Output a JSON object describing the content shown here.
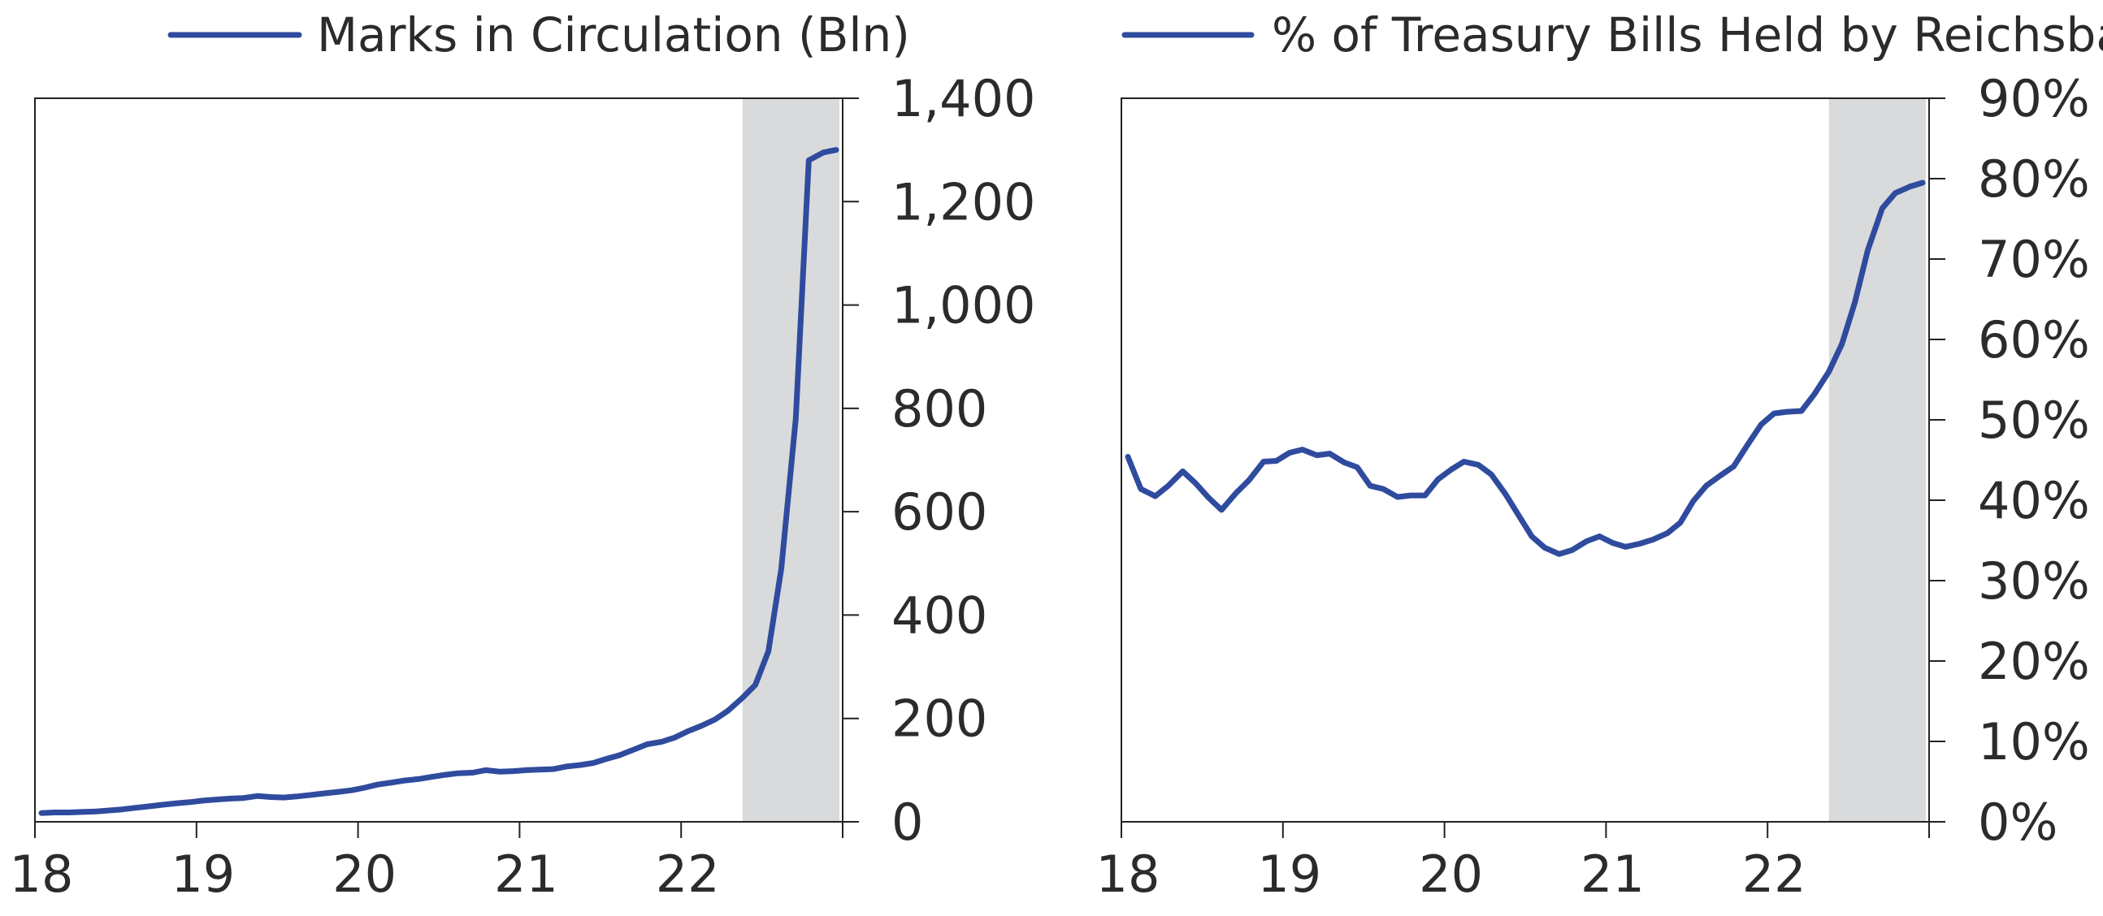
{
  "colors": {
    "series": "#2f4b9e",
    "shade": "#d9dadc",
    "axis": "#222222",
    "text": "#2b2b2b"
  },
  "chart_data": [
    {
      "type": "line",
      "title": "",
      "xlabel": "",
      "ylabel": "",
      "legend": "top",
      "grid": false,
      "shaded_region": {
        "from": 1922.38,
        "to": 1922.98
      },
      "xlim": [
        1918.0,
        1923.0
      ],
      "ylim": [
        0,
        1400
      ],
      "y_axis_side": "right",
      "x_ticks": [
        {
          "value": 1918,
          "label": "18"
        },
        {
          "value": 1919,
          "label": "19"
        },
        {
          "value": 1920,
          "label": "20"
        },
        {
          "value": 1921,
          "label": "21"
        },
        {
          "value": 1922,
          "label": "22"
        }
      ],
      "y_ticks": [
        {
          "value": 0,
          "label": "0"
        },
        {
          "value": 200,
          "label": "200"
        },
        {
          "value": 400,
          "label": "400"
        },
        {
          "value": 600,
          "label": "600"
        },
        {
          "value": 800,
          "label": "800"
        },
        {
          "value": 1000,
          "label": "1,000"
        },
        {
          "value": 1200,
          "label": "1,200"
        },
        {
          "value": 1400,
          "label": "1,400"
        }
      ],
      "series": [
        {
          "name": "Marks in Circulation (Bln)",
          "x": [
            1918.04,
            1918.12,
            1918.21,
            1918.29,
            1918.38,
            1918.46,
            1918.54,
            1918.62,
            1918.71,
            1918.79,
            1918.88,
            1918.96,
            1919.04,
            1919.12,
            1919.21,
            1919.29,
            1919.38,
            1919.46,
            1919.54,
            1919.62,
            1919.71,
            1919.79,
            1919.88,
            1919.96,
            1920.04,
            1920.12,
            1920.21,
            1920.29,
            1920.38,
            1920.46,
            1920.54,
            1920.62,
            1920.71,
            1920.79,
            1920.88,
            1920.96,
            1921.04,
            1921.12,
            1921.21,
            1921.29,
            1921.38,
            1921.46,
            1921.54,
            1921.62,
            1921.71,
            1921.79,
            1921.88,
            1921.96,
            1922.04,
            1922.12,
            1922.21,
            1922.29,
            1922.38,
            1922.46,
            1922.54,
            1922.62,
            1922.71,
            1922.79,
            1922.88,
            1922.96
          ],
          "values": [
            17,
            18,
            18,
            19,
            20,
            22,
            24,
            27,
            30,
            33,
            36,
            38,
            41,
            43,
            45,
            46,
            50,
            48,
            47,
            49,
            52,
            55,
            58,
            61,
            66,
            72,
            76,
            80,
            83,
            87,
            91,
            94,
            95,
            100,
            97,
            98,
            100,
            101,
            102,
            107,
            110,
            114,
            122,
            129,
            140,
            150,
            155,
            163,
            175,
            185,
            198,
            215,
            240,
            265,
            330,
            490,
            780,
            1280,
            1295,
            1300
          ]
        }
      ]
    },
    {
      "type": "line",
      "title": "",
      "xlabel": "",
      "ylabel": "",
      "legend": "top",
      "grid": false,
      "shaded_region": {
        "from": 1922.38,
        "to": 1922.98
      },
      "xlim": [
        1918.0,
        1923.0
      ],
      "ylim": [
        0,
        90
      ],
      "y_axis_side": "right",
      "x_ticks": [
        {
          "value": 1918,
          "label": "18"
        },
        {
          "value": 1919,
          "label": "19"
        },
        {
          "value": 1920,
          "label": "20"
        },
        {
          "value": 1921,
          "label": "21"
        },
        {
          "value": 1922,
          "label": "22"
        }
      ],
      "y_ticks": [
        {
          "value": 0,
          "label": "0%"
        },
        {
          "value": 10,
          "label": "10%"
        },
        {
          "value": 20,
          "label": "20%"
        },
        {
          "value": 30,
          "label": "30%"
        },
        {
          "value": 40,
          "label": "40%"
        },
        {
          "value": 50,
          "label": "50%"
        },
        {
          "value": 60,
          "label": "60%"
        },
        {
          "value": 70,
          "label": "70%"
        },
        {
          "value": 80,
          "label": "80%"
        },
        {
          "value": 90,
          "label": "90%"
        }
      ],
      "series": [
        {
          "name": "% of Treasury Bills Held by Reichsbank",
          "x": [
            1918.04,
            1918.12,
            1918.21,
            1918.29,
            1918.38,
            1918.46,
            1918.54,
            1918.62,
            1918.71,
            1918.79,
            1918.88,
            1918.96,
            1919.04,
            1919.12,
            1919.21,
            1919.29,
            1919.38,
            1919.46,
            1919.54,
            1919.62,
            1919.71,
            1919.79,
            1919.88,
            1919.96,
            1920.04,
            1920.12,
            1920.21,
            1920.29,
            1920.38,
            1920.46,
            1920.54,
            1920.62,
            1920.71,
            1920.79,
            1920.88,
            1920.96,
            1921.04,
            1921.12,
            1921.21,
            1921.29,
            1921.38,
            1921.46,
            1921.54,
            1921.62,
            1921.71,
            1921.79,
            1921.88,
            1921.96,
            1922.04,
            1922.12,
            1922.21,
            1922.29,
            1922.38,
            1922.46,
            1922.54,
            1922.62,
            1922.71,
            1922.79,
            1922.88,
            1922.96
          ],
          "values": [
            45.4,
            41.4,
            40.5,
            41.8,
            43.6,
            42.1,
            40.3,
            38.8,
            40.9,
            42.5,
            44.8,
            44.9,
            45.9,
            46.3,
            45.6,
            45.8,
            44.7,
            44.1,
            41.8,
            41.4,
            40.4,
            40.6,
            40.6,
            42.6,
            43.8,
            44.8,
            44.4,
            43.2,
            40.7,
            38.1,
            35.5,
            34.1,
            33.3,
            33.8,
            34.9,
            35.5,
            34.7,
            34.2,
            34.6,
            35.1,
            35.9,
            37.2,
            39.9,
            41.8,
            43.1,
            44.2,
            47.0,
            49.4,
            50.8,
            51.0,
            51.1,
            53.2,
            56.0,
            59.4,
            64.6,
            71.1,
            76.3,
            78.2,
            79.0,
            79.5
          ]
        }
      ]
    }
  ]
}
